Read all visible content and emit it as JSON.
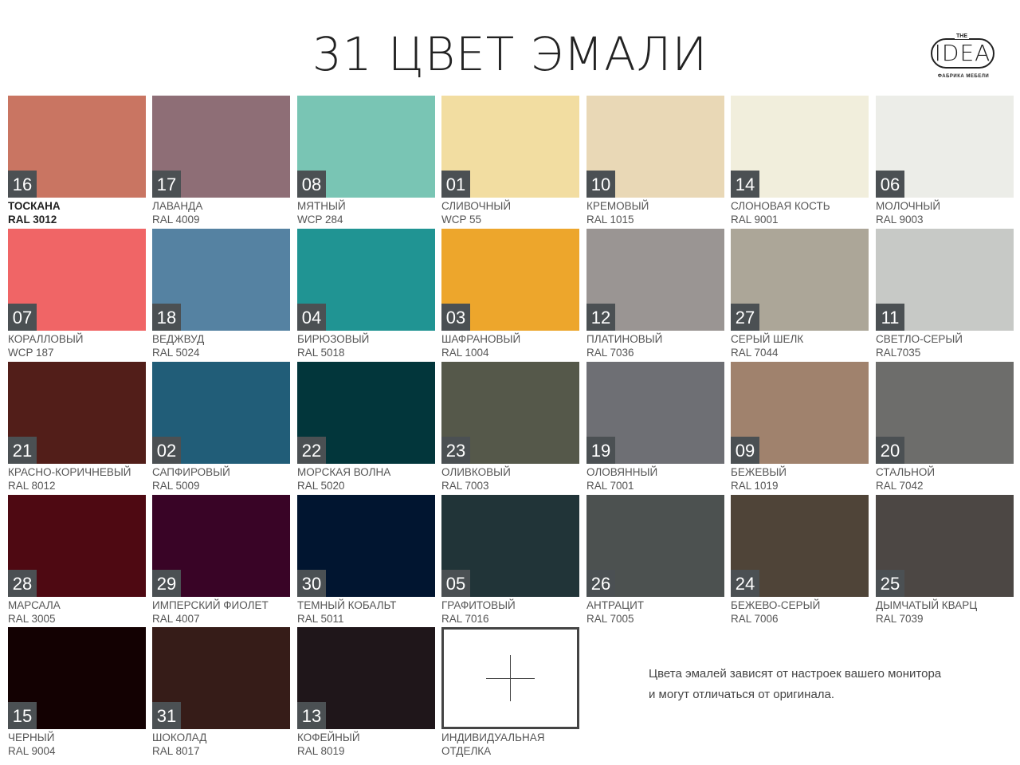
{
  "title": "31 ЦВЕТ ЭМАЛИ",
  "logo": {
    "the": "THE",
    "name": "IDEA",
    "subtitle": "ФАБРИКА МЕБЕЛИ"
  },
  "colors": [
    {
      "num": "16",
      "name": "ТОСКАНА",
      "code": "RAL 3012",
      "hex": "#c97562"
    },
    {
      "num": "17",
      "name": "ЛАВАНДА",
      "code": "RAL 4009",
      "hex": "#8e6e76"
    },
    {
      "num": "08",
      "name": "МЯТНЫЙ",
      "code": "WCP 284",
      "hex": "#79c5b4"
    },
    {
      "num": "01",
      "name": "СЛИВОЧНЫЙ",
      "code": "WCP 55",
      "hex": "#f2dda1"
    },
    {
      "num": "10",
      "name": "КРЕМОВЫЙ",
      "code": "RAL 1015",
      "hex": "#e9d8b6"
    },
    {
      "num": "14",
      "name": "СЛОНОВАЯ КОСТЬ",
      "code": "RAL 9001",
      "hex": "#f1eedc"
    },
    {
      "num": "06",
      "name": "МОЛОЧНЫЙ",
      "code": "RAL 9003",
      "hex": "#ecede8"
    },
    {
      "num": "07",
      "name": "КОРАЛЛОВЫЙ",
      "code": "WCP 187",
      "hex": "#f06566"
    },
    {
      "num": "18",
      "name": "ВЕДЖВУД",
      "code": "RAL 5024",
      "hex": "#5582a2"
    },
    {
      "num": "04",
      "name": "БИРЮЗОВЫЙ",
      "code": "RAL 5018",
      "hex": "#209493"
    },
    {
      "num": "03",
      "name": "ШАФРАНОВЫЙ",
      "code": "RAL 1004",
      "hex": "#eda62c"
    },
    {
      "num": "12",
      "name": "ПЛАТИНОВЫЙ",
      "code": "RAL 7036",
      "hex": "#9a9593"
    },
    {
      "num": "27",
      "name": "СЕРЫЙ ШЕЛК",
      "code": "RAL 7044",
      "hex": "#aca698"
    },
    {
      "num": "11",
      "name": "СВЕТЛО-СЕРЫЙ",
      "code": "RAL7035",
      "hex": "#c7c9c6"
    },
    {
      "num": "21",
      "name": "КРАСНО-КОРИЧНЕВЫЙ",
      "code": "RAL 8012",
      "hex": "#521e19"
    },
    {
      "num": "02",
      "name": "САПФИРОВЫЙ",
      "code": "RAL 5009",
      "hex": "#215d78"
    },
    {
      "num": "22",
      "name": "МОРСКАЯ ВОЛНА",
      "code": "RAL 5020",
      "hex": "#02363b"
    },
    {
      "num": "23",
      "name": "ОЛИВКОВЫЙ",
      "code": "RAL 7003",
      "hex": "#55584a"
    },
    {
      "num": "19",
      "name": "ОЛОВЯННЫЙ",
      "code": "RAL 7001",
      "hex": "#6e6f74"
    },
    {
      "num": "09",
      "name": "БЕЖЕВЫЙ",
      "code": "RAL 1019",
      "hex": "#a0826d"
    },
    {
      "num": "20",
      "name": "СТАЛЬНОЙ",
      "code": "RAL 7042",
      "hex": "#6d6d6b"
    },
    {
      "num": "28",
      "name": "МАРСАЛА",
      "code": "RAL 3005",
      "hex": "#4e0912"
    },
    {
      "num": "29",
      "name": "ИМПЕРСКИЙ ФИОЛЕТ",
      "code": "RAL 4007",
      "hex": "#390426"
    },
    {
      "num": "30",
      "name": "ТЕМНЫЙ КОБАЛЬТ",
      "code": "RAL 5011",
      "hex": "#011530"
    },
    {
      "num": "05",
      "name": "ГРАФИТОВЫЙ",
      "code": "RAL 7016",
      "hex": "#213438"
    },
    {
      "num": "26",
      "name": "АНТРАЦИТ",
      "code": "RAL 7005",
      "hex": "#4c5150"
    },
    {
      "num": "24",
      "name": "БЕЖЕВО-СЕРЫЙ",
      "code": "RAL 7006",
      "hex": "#4f4438"
    },
    {
      "num": "25",
      "name": "ДЫМЧАТЫЙ КВАРЦ",
      "code": "RAL 7039",
      "hex": "#4c4744"
    },
    {
      "num": "15",
      "name": "ЧЕРНЫЙ",
      "code": "RAL 9004",
      "hex": "#130102"
    },
    {
      "num": "31",
      "name": "ШОКОЛАД",
      "code": "RAL 8017",
      "hex": "#361c18"
    },
    {
      "num": "13",
      "name": "КОФЕЙНЫЙ",
      "code": "RAL 8019",
      "hex": "#1f161a"
    }
  ],
  "custom": {
    "name": "ИНДИВИДУАЛЬНАЯ",
    "name2": "ОТДЕЛКА"
  },
  "note": {
    "line1": "Цвета эмалей зависят от настроек  вашего монитора",
    "line2": "и могут отличаться  от оригинала."
  }
}
